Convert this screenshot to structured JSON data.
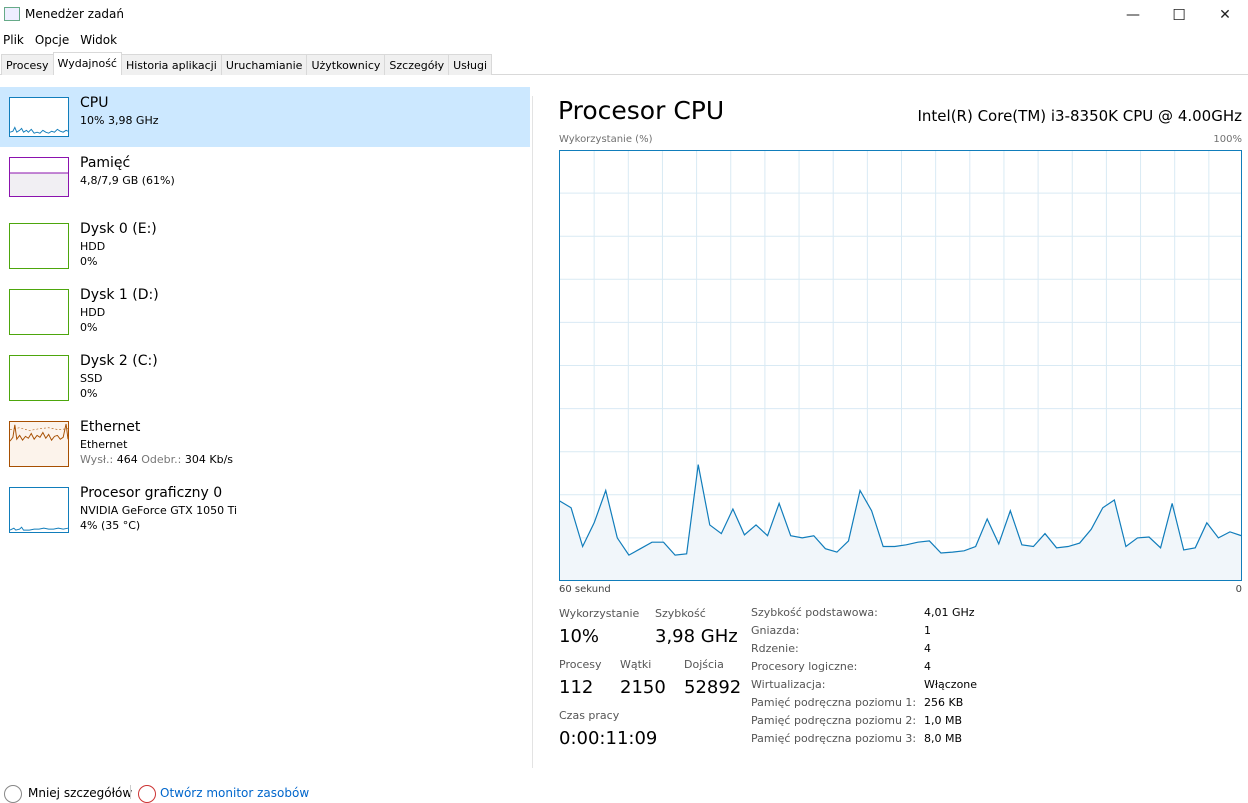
{
  "window": {
    "title": "Menedżer zadań",
    "minimize": "—",
    "maximize": "☐",
    "close": "✕"
  },
  "menu": [
    "Plik",
    "Opcje",
    "Widok"
  ],
  "tabs": [
    "Procesy",
    "Wydajność",
    "Historia aplikacji",
    "Uruchamianie",
    "Użytkownicy",
    "Szczegóły",
    "Usługi"
  ],
  "active_tab": "Wydajność",
  "sidebar": [
    {
      "name": "CPU",
      "line1": "10% 3,98 GHz",
      "color": "#117dbb"
    },
    {
      "name": "Pamięć",
      "line1": "4,8/7,9 GB (61%)",
      "color": "#8b12ae",
      "fill_pct": 61
    },
    {
      "name": "Dysk 0 (E:)",
      "line1": "HDD",
      "line2": "0%",
      "color": "#4da60c"
    },
    {
      "name": "Dysk 1 (D:)",
      "line1": "HDD",
      "line2": "0%",
      "color": "#4da60c"
    },
    {
      "name": "Dysk 2 (C:)",
      "line1": "SSD",
      "line2": "0%",
      "color": "#4da60c"
    },
    {
      "name": "Ethernet",
      "line1": "Ethernet",
      "send_label": "Wysł.:",
      "send": "464",
      "recv_label": "Odebr.:",
      "recv": "304 Kb/s",
      "color": "#a74f01"
    },
    {
      "name": "Procesor graficzny 0",
      "line1": "NVIDIA GeForce GTX 1050 Ti",
      "line2": "4% (35 °C)",
      "color": "#117dbb"
    }
  ],
  "main": {
    "title": "Procesor CPU",
    "cpu_model": "Intel(R) Core(TM) i3-8350K CPU @ 4.00GHz",
    "stats": {
      "util_label": "Wykorzystanie",
      "util": "10%",
      "speed_label": "Szybkość",
      "speed": "3,98 GHz",
      "proc_label": "Procesy",
      "proc": "112",
      "threads_label": "Wątki",
      "threads": "2150",
      "handles_label": "Dojścia",
      "handles": "52892",
      "uptime_label": "Czas pracy",
      "uptime": "0:00:11:09"
    },
    "details": [
      {
        "k": "Szybkość podstawowa:",
        "v": "4,01 GHz"
      },
      {
        "k": "Gniazda:",
        "v": "1"
      },
      {
        "k": "Rdzenie:",
        "v": "4"
      },
      {
        "k": "Procesory logiczne:",
        "v": "4"
      },
      {
        "k": "Wirtualizacja:",
        "v": "Włączone"
      },
      {
        "k": "Pamięć podręczna poziomu 1:",
        "v": "256 KB"
      },
      {
        "k": "Pamięć podręczna poziomu 2:",
        "v": "1,0 MB"
      },
      {
        "k": "Pamięć podręczna poziomu 3:",
        "v": "8,0 MB"
      }
    ]
  },
  "chart_data": {
    "type": "area",
    "ylabel": "Wykorzystanie (%)",
    "ymax_label": "100%",
    "xlabel_left": "60 sekund",
    "xlabel_right": "0",
    "ylim": [
      0,
      100
    ],
    "xlim": [
      60,
      0
    ],
    "grid": true,
    "color": "#117dbb",
    "values": [
      18.6,
      17,
      8,
      13.5,
      21,
      10,
      6,
      7.5,
      9,
      9,
      6,
      6.3,
      27,
      13,
      11,
      16.7,
      10.7,
      13,
      10.5,
      18,
      10.5,
      10,
      10.5,
      7.5,
      6.7,
      9.3,
      21,
      16.3,
      8,
      8,
      8.4,
      9,
      9.3,
      6.5,
      6.7,
      7,
      8,
      14.4,
      8.6,
      16.3,
      8.4,
      8,
      11,
      7.7,
      8,
      8.8,
      12,
      17,
      18.8,
      8,
      10,
      10.2,
      7.7,
      18,
      7.2,
      7.7,
      13.5,
      10,
      11.4,
      10.5
    ]
  },
  "footer": {
    "less": "Mniej szczegółów",
    "monitor": "Otwórz monitor zasobów"
  }
}
